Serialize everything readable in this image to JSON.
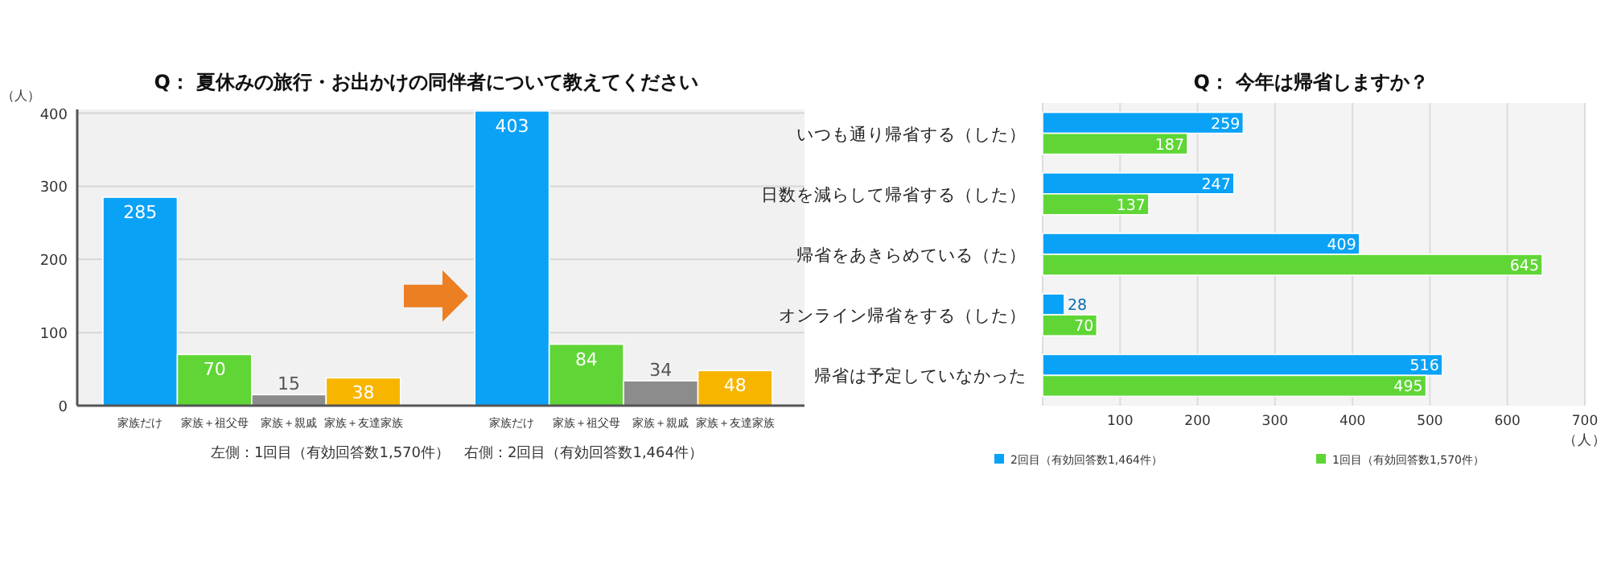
{
  "chart_data": [
    {
      "type": "bar",
      "title": "Q： 夏休みの旅行・お出かけの同伴者について教えてください",
      "ylabel": "（人）",
      "categories": [
        "家族だけ",
        "家族＋祖父母",
        "家族＋親戚",
        "家族＋友達家族",
        null,
        "家族だけ",
        "家族＋祖父母",
        "家族＋親戚",
        "家族＋友達家族"
      ],
      "values": [
        285,
        70,
        15,
        38,
        null,
        403,
        84,
        34,
        48
      ],
      "colors": [
        "#0aa2f7",
        "#5fd636",
        "#8c8c8c",
        "#f7b500",
        null,
        "#0aa2f7",
        "#5fd636",
        "#8c8c8c",
        "#f7b500"
      ],
      "ylim": [
        0,
        405
      ],
      "yticks": [
        0,
        100,
        200,
        300,
        400
      ],
      "grid": "y",
      "data_labels": true,
      "annotations": [
        "左側：1回目（有効回答数1,570件）　右側：2回目（有効回答数1,464件）"
      ]
    },
    {
      "type": "bar",
      "orientation": "horizontal",
      "title": "Q： 今年は帰省しますか？",
      "xlabel": "（人）",
      "categories": [
        "いつも通り帰省する（した）",
        "日数を減らして帰省する（した）",
        "帰省をあきらめている（た）",
        "オンライン帰省をする（した）",
        "帰省は予定していなかった"
      ],
      "series": [
        {
          "name": "2回目（有効回答数1,464件）",
          "color": "#0aa2f7",
          "values": [
            259,
            247,
            409,
            28,
            516
          ]
        },
        {
          "name": "1回目（有効回答数1,570件）",
          "color": "#5fd636",
          "values": [
            187,
            137,
            645,
            70,
            495
          ]
        }
      ],
      "xlim": [
        0,
        700
      ],
      "xticks": [
        {
          "value": 0,
          "label": null
        },
        100,
        200,
        300,
        400,
        500,
        600,
        700
      ],
      "grid": "x",
      "data_labels": true,
      "legend": "bottom"
    }
  ]
}
